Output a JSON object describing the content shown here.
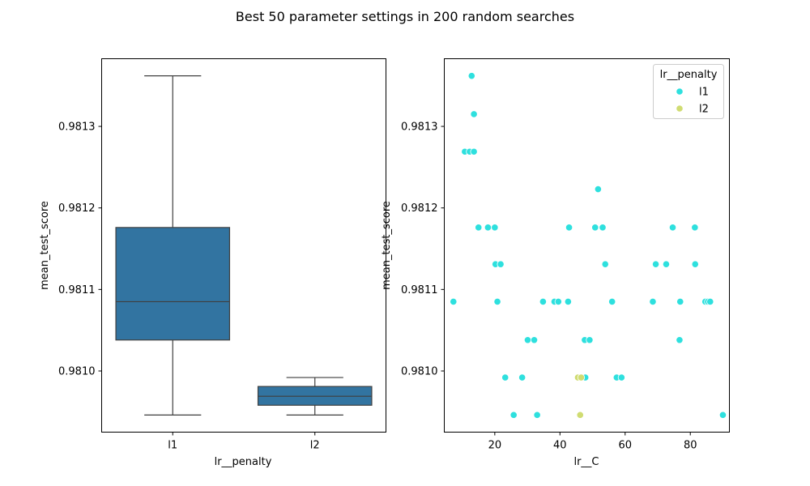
{
  "figure": {
    "title": "Best 50 parameter settings in 200 random searches"
  },
  "chart_data": [
    {
      "type": "box",
      "xlabel": "lr__penalty",
      "ylabel": "mean_test_score",
      "ylim": [
        0.980925,
        0.981383
      ],
      "yticks": [
        0.981,
        0.9811,
        0.9812,
        0.9813
      ],
      "ytick_labels": [
        "0.9810",
        "0.9811",
        "0.9812",
        "0.9813"
      ],
      "categories": [
        "l1",
        "l2"
      ],
      "box_color": "#3274a1",
      "boxes": [
        {
          "category": "l1",
          "whisker_low": 0.980946,
          "q1": 0.981038,
          "median": 0.981085,
          "q3": 0.981176,
          "whisker_high": 0.981362
        },
        {
          "category": "l2",
          "whisker_low": 0.980946,
          "q1": 0.980958,
          "median": 0.980969,
          "q3": 0.980981,
          "whisker_high": 0.980992
        }
      ]
    },
    {
      "type": "scatter",
      "xlabel": "lr__C",
      "ylabel": "mean_test_score",
      "xlim": [
        4.5,
        92
      ],
      "ylim": [
        0.980925,
        0.981383
      ],
      "xticks": [
        20,
        40,
        60,
        80
      ],
      "xtick_labels": [
        "20",
        "40",
        "60",
        "80"
      ],
      "yticks": [
        0.981,
        0.9811,
        0.9812,
        0.9813
      ],
      "ytick_labels": [
        "0.9810",
        "0.9811",
        "0.9812",
        "0.9813"
      ],
      "legend": {
        "title": "lr__penalty",
        "placement": "top-right"
      },
      "series": [
        {
          "name": "l1",
          "color": "#2ee0de",
          "points": [
            [
              12.9,
              0.981362
            ],
            [
              13.6,
              0.981315
            ],
            [
              10.8,
              0.981269
            ],
            [
              12.3,
              0.981269
            ],
            [
              13.6,
              0.981269
            ],
            [
              51.7,
              0.981223
            ],
            [
              15.0,
              0.981176
            ],
            [
              17.9,
              0.981176
            ],
            [
              20.0,
              0.981176
            ],
            [
              42.8,
              0.981176
            ],
            [
              50.8,
              0.981176
            ],
            [
              53.1,
              0.981176
            ],
            [
              74.6,
              0.981176
            ],
            [
              81.4,
              0.981176
            ],
            [
              20.2,
              0.981131
            ],
            [
              21.8,
              0.981131
            ],
            [
              53.9,
              0.981131
            ],
            [
              69.4,
              0.981131
            ],
            [
              72.6,
              0.981131
            ],
            [
              81.5,
              0.981131
            ],
            [
              7.3,
              0.981085
            ],
            [
              20.8,
              0.981085
            ],
            [
              34.8,
              0.981085
            ],
            [
              38.3,
              0.981085
            ],
            [
              39.5,
              0.981085
            ],
            [
              42.5,
              0.981085
            ],
            [
              56.0,
              0.981085
            ],
            [
              68.5,
              0.981085
            ],
            [
              76.9,
              0.981085
            ],
            [
              84.6,
              0.981085
            ],
            [
              85.4,
              0.981085
            ],
            [
              86.1,
              0.981085
            ],
            [
              30.1,
              0.981038
            ],
            [
              32.1,
              0.981038
            ],
            [
              47.6,
              0.981038
            ],
            [
              49.1,
              0.981038
            ],
            [
              76.7,
              0.981038
            ],
            [
              23.2,
              0.980992
            ],
            [
              28.4,
              0.980992
            ],
            [
              45.9,
              0.980992
            ],
            [
              47.8,
              0.980992
            ],
            [
              57.4,
              0.980992
            ],
            [
              58.9,
              0.980992
            ],
            [
              25.8,
              0.980946
            ],
            [
              33.0,
              0.980946
            ],
            [
              90.0,
              0.980946
            ]
          ]
        },
        {
          "name": "l2",
          "color": "#d0dc72",
          "points": [
            [
              45.5,
              0.980992
            ],
            [
              46.5,
              0.980992
            ],
            [
              46.2,
              0.980946
            ]
          ]
        }
      ]
    }
  ]
}
